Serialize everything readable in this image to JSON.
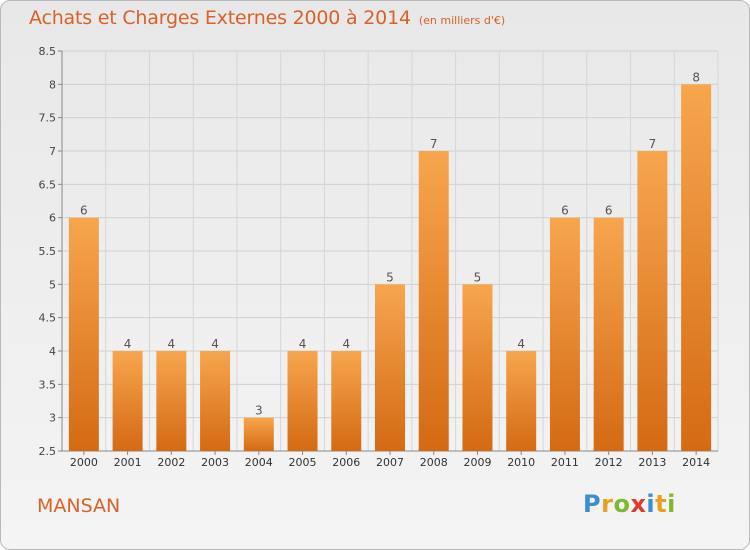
{
  "chart_data": {
    "type": "bar",
    "title": "Achats et Charges Externes 2000 à 2014",
    "subtitle": "(en milliers d'€)",
    "categories": [
      "2000",
      "2001",
      "2002",
      "2003",
      "2004",
      "2005",
      "2006",
      "2007",
      "2008",
      "2009",
      "2010",
      "2011",
      "2012",
      "2013",
      "2014"
    ],
    "values": [
      6,
      4,
      4,
      4,
      3,
      4,
      4,
      5,
      7,
      5,
      4,
      6,
      6,
      7,
      8
    ],
    "data_labels": [
      "6",
      "4",
      "4",
      "4",
      "3",
      "4",
      "4",
      "5",
      "7",
      "5",
      "4",
      "6",
      "6",
      "7",
      "8"
    ],
    "y_ticks": [
      "2.5",
      "3",
      "3.5",
      "4",
      "4.5",
      "5",
      "5.5",
      "6",
      "6.5",
      "7",
      "7.5",
      "8",
      "8.5"
    ],
    "ylim": [
      2.5,
      8.5
    ],
    "xlabel": "",
    "ylabel": "",
    "grid": true,
    "bar_color": "#e8822c"
  },
  "footer": {
    "commune": "MANSAN",
    "logo_text": "Proxiti",
    "logo_letters": [
      {
        "ch": "P",
        "color": "#3a8fd0"
      },
      {
        "ch": "r",
        "color": "#e8a020"
      },
      {
        "ch": "o",
        "color": "#80b830"
      },
      {
        "ch": "x",
        "color": "#e03a2a"
      },
      {
        "ch": "i",
        "color": "#3a8fd0"
      },
      {
        "ch": "t",
        "color": "#e8a020"
      },
      {
        "ch": "i",
        "color": "#80b830"
      }
    ]
  }
}
